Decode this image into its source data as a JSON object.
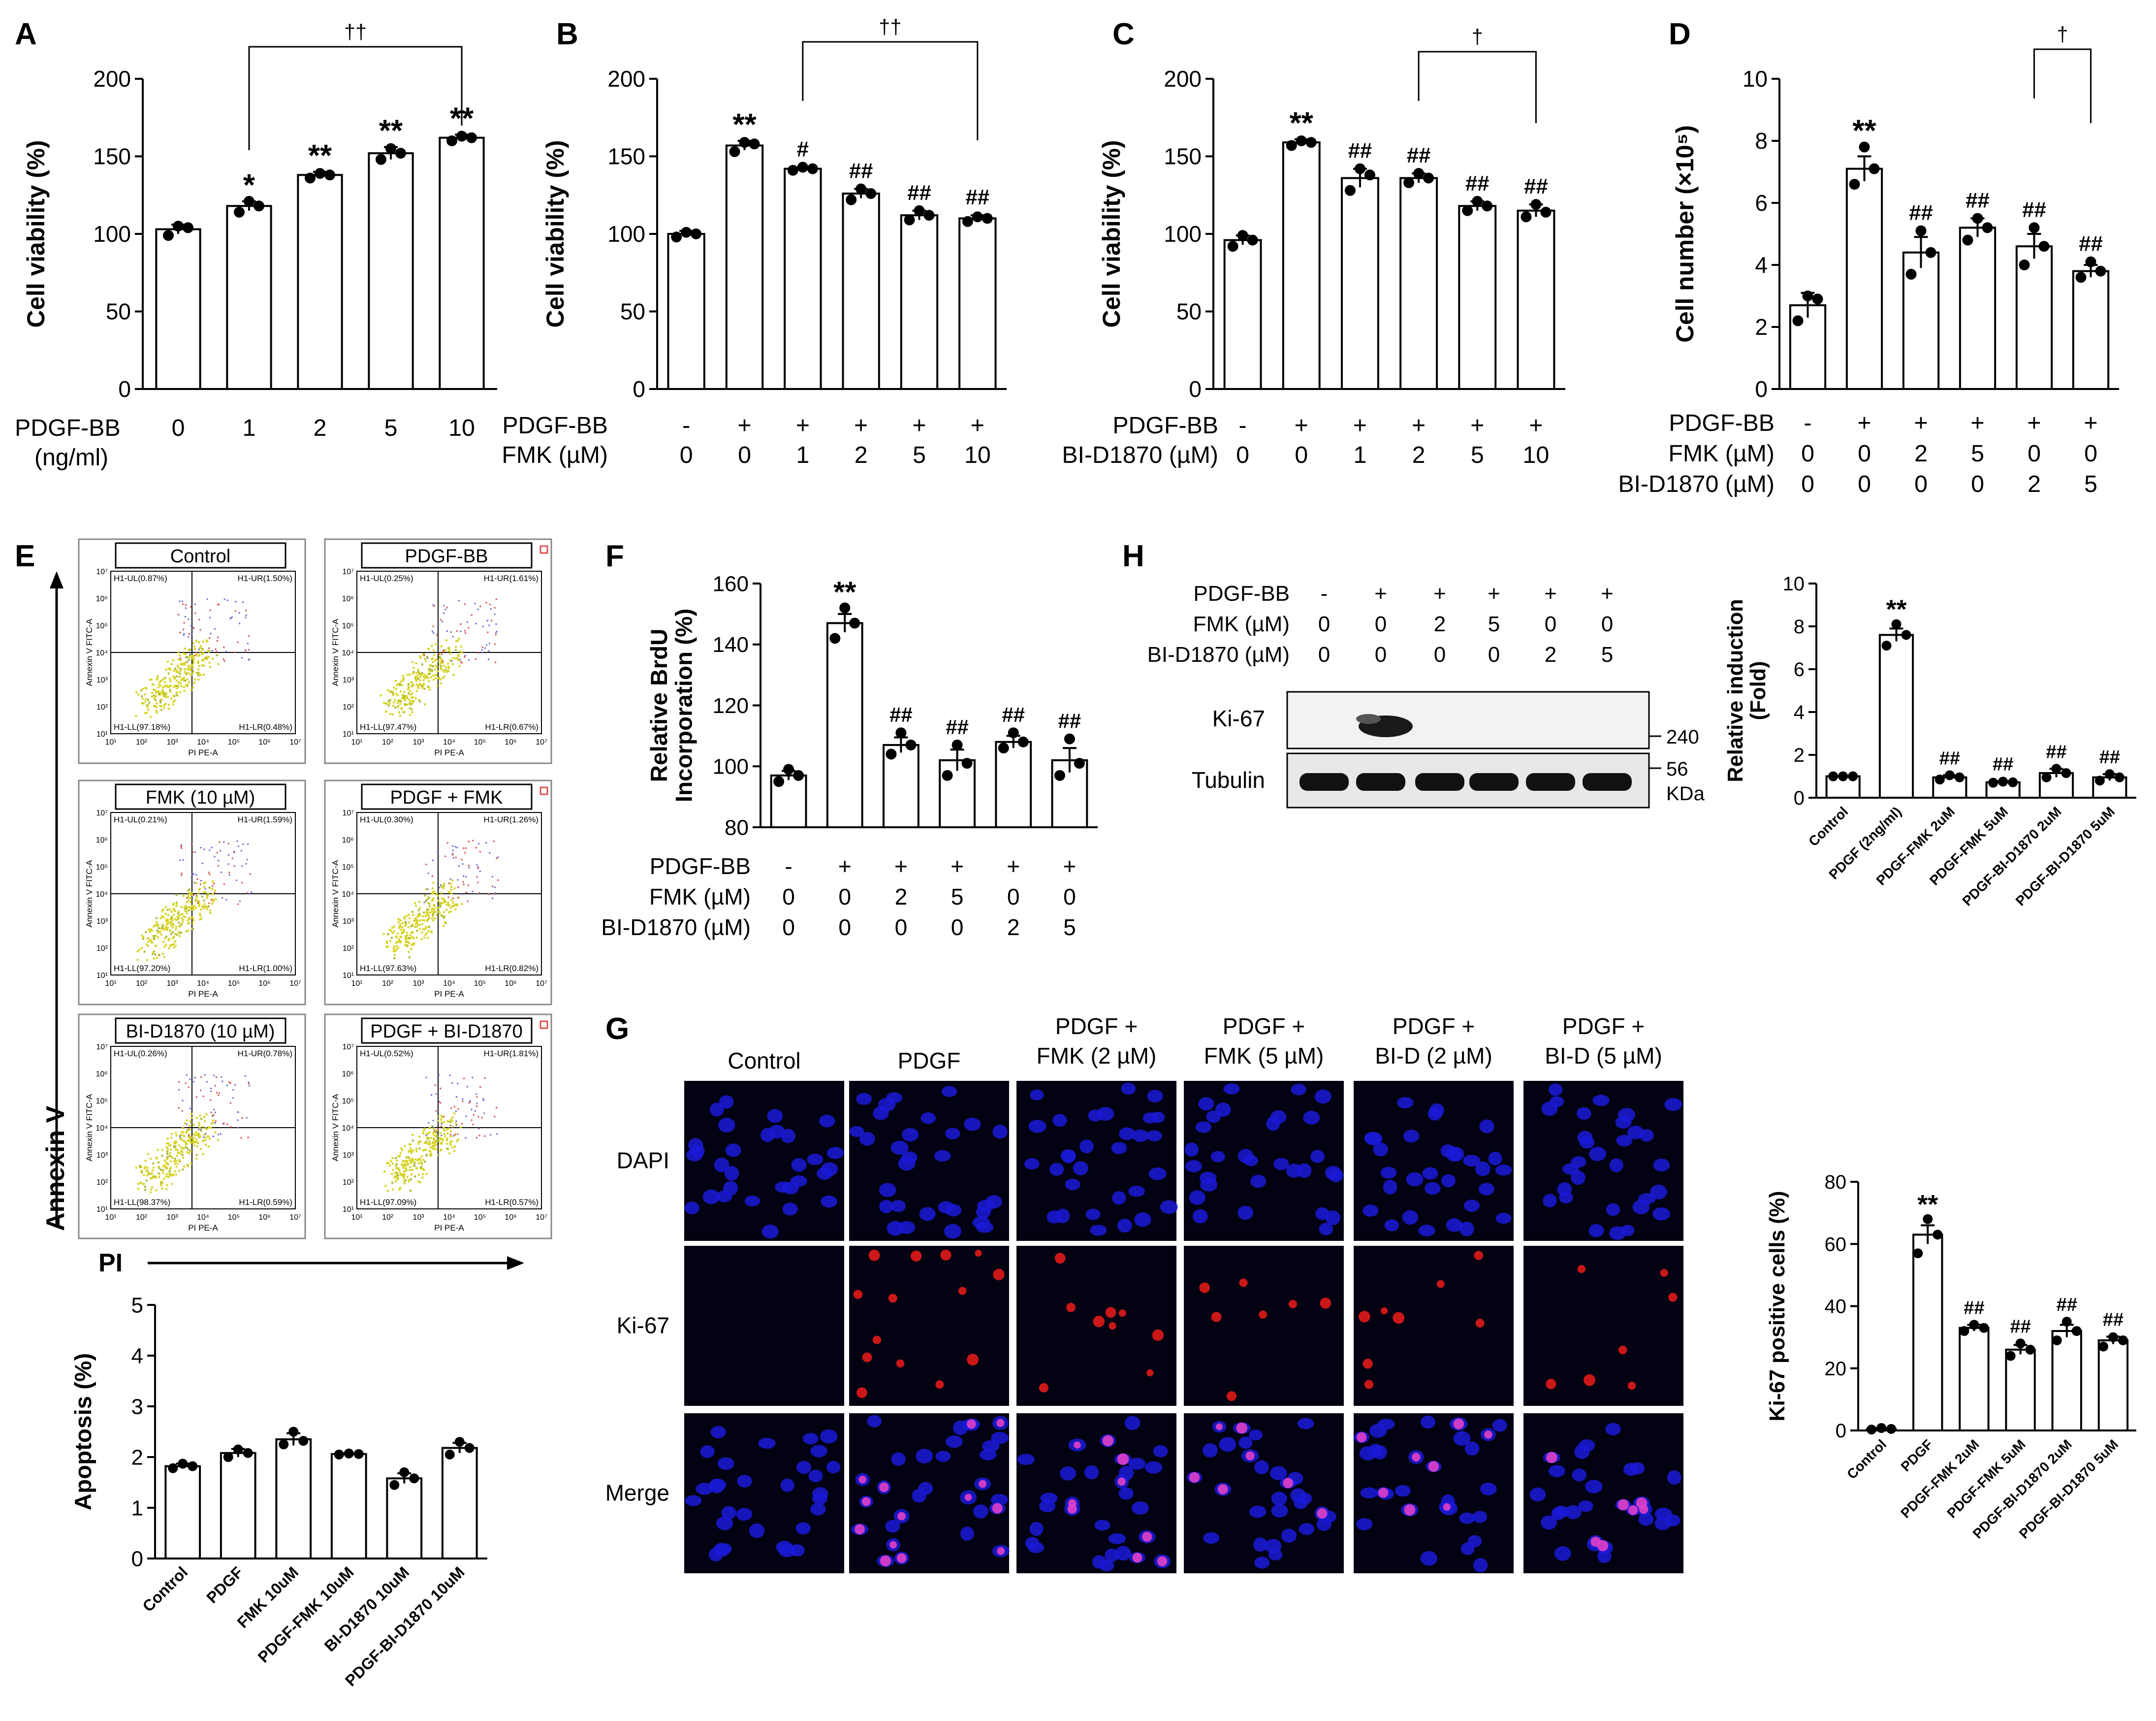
{
  "chart_data": [
    {
      "panel": "A",
      "type": "bar",
      "ylabel": "Cell viability (%)",
      "ylim": [
        0,
        200
      ],
      "yticks": [
        0,
        50,
        100,
        150,
        200
      ],
      "row_labels": [
        "PDGF-BB",
        "(ng/ml)"
      ],
      "rows": [
        [
          "0",
          "1",
          "2",
          "5",
          "10"
        ]
      ],
      "values": [
        103,
        118,
        138,
        152,
        162
      ],
      "errors": [
        3,
        3,
        2,
        4,
        2
      ],
      "points": [
        [
          99,
          104,
          105
        ],
        [
          114,
          118,
          121
        ],
        [
          136,
          138,
          139
        ],
        [
          148,
          152,
          155
        ],
        [
          160,
          162,
          163
        ]
      ],
      "stars": [
        "",
        "*",
        "**",
        "**",
        "**"
      ],
      "bracket": {
        "from": 1,
        "to": 4,
        "label": "††"
      }
    },
    {
      "panel": "B",
      "type": "bar",
      "ylabel": "Cell viability (%)",
      "ylim": [
        0,
        200
      ],
      "yticks": [
        0,
        50,
        100,
        150,
        200
      ],
      "row_labels": [
        "PDGF-BB",
        "FMK (µM)"
      ],
      "rows": [
        [
          "-",
          "+",
          "+",
          "+",
          "+",
          "+"
        ],
        [
          "0",
          "0",
          "1",
          "2",
          "5",
          "10"
        ]
      ],
      "values": [
        100,
        157,
        142,
        126,
        112,
        110
      ],
      "errors": [
        2,
        3,
        1,
        3,
        3,
        2
      ],
      "points": [
        [
          98,
          100,
          101
        ],
        [
          153,
          158,
          159
        ],
        [
          141,
          142,
          143
        ],
        [
          122,
          126,
          129
        ],
        [
          109,
          112,
          115
        ],
        [
          108,
          110,
          111
        ]
      ],
      "stars": [
        "",
        "**",
        "#",
        "##",
        "##",
        "##"
      ],
      "bracket": {
        "from": 2,
        "to": 5,
        "label": "††"
      }
    },
    {
      "panel": "C",
      "type": "bar",
      "ylabel": "Cell viability (%)",
      "ylim": [
        0,
        200
      ],
      "yticks": [
        0,
        50,
        100,
        150,
        200
      ],
      "row_labels": [
        "PDGF-BB",
        "BI-D1870 (µM)"
      ],
      "rows": [
        [
          "-",
          "+",
          "+",
          "+",
          "+",
          "+"
        ],
        [
          "0",
          "0",
          "1",
          "2",
          "5",
          "10"
        ]
      ],
      "values": [
        96,
        159,
        136,
        136,
        118,
        115
      ],
      "errors": [
        3,
        2,
        6,
        3,
        3,
        4
      ],
      "points": [
        [
          92,
          96,
          99
        ],
        [
          157,
          159,
          160
        ],
        [
          128,
          138,
          142
        ],
        [
          133,
          136,
          139
        ],
        [
          115,
          118,
          121
        ],
        [
          111,
          114,
          119
        ]
      ],
      "stars": [
        "",
        "**",
        "##",
        "##",
        "##",
        "##"
      ],
      "bracket": {
        "from": 3,
        "to": 5,
        "label": "†"
      }
    },
    {
      "panel": "D",
      "type": "bar",
      "ylabel": "Cell number (×10⁵)",
      "ylim": [
        0,
        10
      ],
      "yticks": [
        0,
        2,
        4,
        6,
        8,
        10
      ],
      "row_labels": [
        "PDGF-BB",
        "FMK (µM)",
        "BI-D1870 (µM)"
      ],
      "rows": [
        [
          "-",
          "+",
          "+",
          "+",
          "+",
          "+"
        ],
        [
          "0",
          "0",
          "2",
          "5",
          "0",
          "0"
        ],
        [
          "0",
          "0",
          "0",
          "0",
          "2",
          "5"
        ]
      ],
      "values": [
        2.7,
        7.1,
        4.4,
        5.2,
        4.6,
        3.8
      ],
      "errors": [
        0.4,
        0.4,
        0.5,
        0.3,
        0.4,
        0.2
      ],
      "points": [
        [
          2.2,
          2.9,
          3.0
        ],
        [
          6.6,
          7.1,
          7.8
        ],
        [
          3.7,
          4.4,
          5.1
        ],
        [
          4.8,
          5.2,
          5.5
        ],
        [
          4.0,
          4.6,
          5.2
        ],
        [
          3.6,
          3.8,
          4.1
        ]
      ],
      "stars": [
        "",
        "**",
        "##",
        "##",
        "##",
        "##"
      ],
      "bracket": {
        "from": 4,
        "to": 5,
        "label": "†"
      }
    },
    {
      "panel": "E-bar",
      "type": "bar",
      "ylabel": "Apoptosis (%)",
      "ylim": [
        0,
        5
      ],
      "yticks": [
        0,
        1,
        2,
        3,
        4,
        5
      ],
      "categories": [
        "Control",
        "PDGF",
        "FMK 10uM",
        "PDGF-FMK 10uM",
        "BI-D1870 10uM",
        "PDGF-BI-D1870 10uM"
      ],
      "values": [
        1.82,
        2.08,
        2.35,
        2.06,
        1.58,
        2.18
      ],
      "errors": [
        0.05,
        0.08,
        0.12,
        0.01,
        0.1,
        0.1
      ],
      "points": [
        [
          1.78,
          1.82,
          1.87
        ],
        [
          2.0,
          2.08,
          2.15
        ],
        [
          2.25,
          2.32,
          2.5
        ],
        [
          2.05,
          2.06,
          2.07
        ],
        [
          1.45,
          1.58,
          1.7
        ],
        [
          2.05,
          2.18,
          2.3
        ]
      ]
    },
    {
      "panel": "F",
      "type": "bar",
      "ylabel": "Relative BrdU Incorporation (%)",
      "ylim": [
        80,
        160
      ],
      "yticks": [
        80,
        100,
        120,
        140,
        160
      ],
      "row_labels": [
        "PDGF-BB",
        "FMK (µM)",
        "BI-D1870 (µM)"
      ],
      "rows": [
        [
          "-",
          "+",
          "+",
          "+",
          "+",
          "+"
        ],
        [
          "0",
          "0",
          "2",
          "5",
          "0",
          "0"
        ],
        [
          "0",
          "0",
          "0",
          "0",
          "2",
          "5"
        ]
      ],
      "values": [
        97,
        147,
        107,
        102,
        108,
        102
      ],
      "errors": [
        1.5,
        3,
        2.5,
        3.5,
        2,
        4
      ],
      "points": [
        [
          95,
          97,
          99
        ],
        [
          142,
          147,
          152
        ],
        [
          104,
          107,
          111
        ],
        [
          97,
          101,
          107
        ],
        [
          106,
          108,
          111
        ],
        [
          97,
          101,
          109
        ]
      ],
      "stars": [
        "",
        "**",
        "##",
        "##",
        "##",
        "##"
      ]
    },
    {
      "panel": "H-bar",
      "type": "bar",
      "ylabel": "Relative induction (Fold)",
      "ylim": [
        0,
        10
      ],
      "yticks": [
        0,
        2,
        4,
        6,
        8,
        10
      ],
      "categories": [
        "Control",
        "PDGF (2ng/ml)",
        "PDGF-FMK 2uM",
        "PDGF-FMK 5uM",
        "PDGF-BI-D1870 2uM",
        "PDGF-BI-D1870 5uM"
      ],
      "values": [
        1.0,
        7.6,
        0.95,
        0.72,
        1.15,
        0.95
      ],
      "errors": [
        0,
        0.3,
        0.1,
        0.05,
        0.2,
        0.15
      ],
      "points": [
        [
          1.0,
          1.0,
          1.0
        ],
        [
          7.1,
          7.6,
          8.1
        ],
        [
          0.85,
          0.95,
          1.05
        ],
        [
          0.7,
          0.72,
          0.75
        ],
        [
          0.95,
          1.15,
          1.35
        ],
        [
          0.8,
          0.95,
          1.1
        ]
      ],
      "stars": [
        "",
        "**",
        "##",
        "##",
        "##",
        "##"
      ]
    },
    {
      "panel": "G-bar",
      "type": "bar",
      "ylabel": "Ki-67 positive cells (%)",
      "ylim": [
        0,
        80
      ],
      "yticks": [
        0,
        20,
        40,
        60,
        80
      ],
      "categories": [
        "Control",
        "PDGF",
        "PDGF-FMK 2uM",
        "PDGF-FMK 5uM",
        "PDGF-BI-D1870 2uM",
        "PDGF-BI-D1870 5uM"
      ],
      "values": [
        0.5,
        63,
        33,
        26,
        32,
        29
      ],
      "errors": [
        0.3,
        3,
        1,
        1.5,
        2,
        1.2
      ],
      "points": [
        [
          0.3,
          0.5,
          0.8
        ],
        [
          57,
          63,
          68
        ],
        [
          32,
          33,
          34
        ],
        [
          24,
          26,
          28
        ],
        [
          29,
          32,
          35
        ],
        [
          27,
          29,
          30
        ]
      ],
      "stars": [
        "",
        "**",
        "##",
        "##",
        "##",
        "##"
      ]
    }
  ],
  "panel_letters": {
    "a": "A",
    "b": "B",
    "c": "C",
    "d": "D",
    "e": "E",
    "f": "F",
    "g": "G",
    "h": "H"
  },
  "flow": {
    "y_axis": "Annexin V",
    "x_axis": "PI",
    "axis_x_label": "PI PE-A",
    "axis_y_label": "Annexin V FITC-A",
    "x_ticks": [
      "10¹",
      "10²",
      "10³",
      "10⁴",
      "10⁵",
      "10⁶",
      "10⁷"
    ],
    "y_ticks": [
      "10⁷",
      "10⁶",
      "10⁵",
      "10⁴",
      "10³",
      "10²",
      "10¹"
    ],
    "plots": [
      {
        "title": "Control",
        "ul": "H1-UL(0.87%)",
        "ur": "H1-UR(1.50%)",
        "ll": "H1-LL(97.18%)",
        "lr": "H1-LR(0.48%)"
      },
      {
        "title": "PDGF-BB",
        "ul": "H1-UL(0.25%)",
        "ur": "H1-UR(1.61%)",
        "ll": "H1-LL(97.47%)",
        "lr": "H1-LR(0.67%)"
      },
      {
        "title": "FMK (10 µM)",
        "ul": "H1-UL(0.21%)",
        "ur": "H1-UR(1.59%)",
        "ll": "H1-LL(97.20%)",
        "lr": "H1-LR(1.00%)"
      },
      {
        "title": "PDGF + FMK",
        "ul": "H1-UL(0.30%)",
        "ur": "H1-UR(1.26%)",
        "ll": "H1-LL(97.63%)",
        "lr": "H1-LR(0.82%)"
      },
      {
        "title": "BI-D1870 (10 µM)",
        "ul": "H1-UL(0.26%)",
        "ur": "H1-UR(0.78%)",
        "ll": "H1-LL(98.37%)",
        "lr": "H1-LR(0.59%)"
      },
      {
        "title": "PDGF + BI-D1870",
        "ul": "H1-UL(0.52%)",
        "ur": "H1-UR(1.81%)",
        "ll": "H1-LL(97.09%)",
        "lr": "H1-LR(0.57%)"
      }
    ]
  },
  "blot": {
    "row_labels": [
      "PDGF-BB",
      "FMK (µM)",
      "BI-D1870 (µM)"
    ],
    "rows": [
      [
        "-",
        "+",
        "+",
        "+",
        "+",
        "+"
      ],
      [
        "0",
        "0",
        "2",
        "5",
        "0",
        "0"
      ],
      [
        "0",
        "0",
        "0",
        "0",
        "2",
        "5"
      ]
    ],
    "bands": [
      "Ki-67",
      "Tubulin"
    ],
    "markers": [
      "240",
      "56",
      "KDa"
    ]
  },
  "microscopy": {
    "columns": [
      "Control",
      "PDGF",
      "PDGF +\nFMK (2 µM)",
      "PDGF +\nFMK (5 µM)",
      "PDGF +\nBI-D (2 µM)",
      "PDGF +\nBI-D (5 µM)"
    ],
    "rows": [
      "DAPI",
      "Ki-67",
      "Merge"
    ]
  }
}
